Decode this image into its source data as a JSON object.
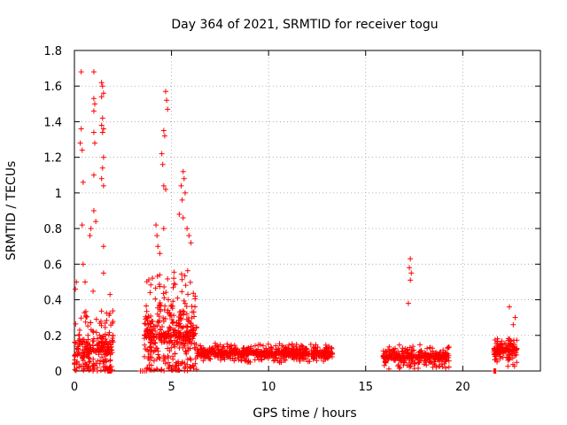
{
  "chart_data": {
    "type": "scatter",
    "title": "Day 364 of 2021, SRMTID for receiver togu",
    "xlabel": "GPS time / hours",
    "ylabel": "SRMTID / TECUs",
    "xlim": [
      0,
      24
    ],
    "ylim": [
      0,
      1.8
    ],
    "xticks": [
      "0",
      "5",
      "10",
      "15",
      "20"
    ],
    "yticks": [
      "0",
      "0.2",
      "0.4",
      "0.6",
      "0.8",
      "1",
      "1.2",
      "1.4",
      "1.6",
      "1.8"
    ],
    "grid": true,
    "marker": "+",
    "color": "#ff0000",
    "series": [
      {
        "name": "SRMTID",
        "clusters": [
          {
            "t0": 0.0,
            "t1": 2.0,
            "n": 260,
            "base": 0.12,
            "spread": 0.35
          },
          {
            "t0": 3.6,
            "t1": 6.3,
            "n": 420,
            "base": 0.2,
            "spread": 0.45
          },
          {
            "t0": 6.3,
            "t1": 13.3,
            "n": 650,
            "base": 0.1,
            "spread": 0.06
          },
          {
            "t0": 15.9,
            "t1": 19.3,
            "n": 300,
            "base": 0.08,
            "spread": 0.08
          },
          {
            "t0": 21.6,
            "t1": 22.8,
            "n": 150,
            "base": 0.12,
            "spread": 0.1
          }
        ],
        "points": [
          [
            0.35,
            1.68
          ],
          [
            1.0,
            1.68
          ],
          [
            1.4,
            1.62
          ],
          [
            1.45,
            1.6
          ],
          [
            1.5,
            1.56
          ],
          [
            1.4,
            1.54
          ],
          [
            1.0,
            1.53
          ],
          [
            1.05,
            1.5
          ],
          [
            1.0,
            1.46
          ],
          [
            1.45,
            1.42
          ],
          [
            1.4,
            1.38
          ],
          [
            1.5,
            1.36
          ],
          [
            1.45,
            1.34
          ],
          [
            0.35,
            1.36
          ],
          [
            1.0,
            1.34
          ],
          [
            1.05,
            1.28
          ],
          [
            0.4,
            1.24
          ],
          [
            0.3,
            1.28
          ],
          [
            1.5,
            1.2
          ],
          [
            1.45,
            1.14
          ],
          [
            1.0,
            1.1
          ],
          [
            1.4,
            1.08
          ],
          [
            1.5,
            1.04
          ],
          [
            0.45,
            1.06
          ],
          [
            1.0,
            0.9
          ],
          [
            0.4,
            0.82
          ],
          [
            0.85,
            0.8
          ],
          [
            1.1,
            0.84
          ],
          [
            0.8,
            0.76
          ],
          [
            1.5,
            0.7
          ],
          [
            1.5,
            0.55
          ],
          [
            0.45,
            0.6
          ],
          [
            0.55,
            0.5
          ],
          [
            0.1,
            0.5
          ],
          [
            0.05,
            0.46
          ],
          [
            4.7,
            1.57
          ],
          [
            4.75,
            1.52
          ],
          [
            4.8,
            1.47
          ],
          [
            4.6,
            1.35
          ],
          [
            4.65,
            1.32
          ],
          [
            4.5,
            1.22
          ],
          [
            4.55,
            1.16
          ],
          [
            4.6,
            1.04
          ],
          [
            4.7,
            1.02
          ],
          [
            5.6,
            1.12
          ],
          [
            5.65,
            1.08
          ],
          [
            5.5,
            1.04
          ],
          [
            5.7,
            1.0
          ],
          [
            5.55,
            0.96
          ],
          [
            5.4,
            0.88
          ],
          [
            5.6,
            0.86
          ],
          [
            5.8,
            0.8
          ],
          [
            4.2,
            0.82
          ],
          [
            4.25,
            0.76
          ],
          [
            4.6,
            0.8
          ],
          [
            5.9,
            0.76
          ],
          [
            6.0,
            0.72
          ],
          [
            4.3,
            0.7
          ],
          [
            4.4,
            0.66
          ],
          [
            17.3,
            0.63
          ],
          [
            17.25,
            0.58
          ],
          [
            17.35,
            0.55
          ],
          [
            17.3,
            0.51
          ],
          [
            17.2,
            0.38
          ],
          [
            22.4,
            0.36
          ],
          [
            22.7,
            0.3
          ],
          [
            22.6,
            0.26
          ],
          [
            1.7,
            0.0
          ],
          [
            1.75,
            0.0
          ],
          [
            1.8,
            0.0
          ],
          [
            1.85,
            0.0
          ],
          [
            1.9,
            0.0
          ],
          [
            3.4,
            0.0
          ],
          [
            3.5,
            0.0
          ],
          [
            3.6,
            0.0
          ],
          [
            3.7,
            0.0
          ],
          [
            21.6,
            0.0
          ],
          [
            21.65,
            0.0
          ],
          [
            21.7,
            0.0
          ]
        ]
      }
    ]
  }
}
